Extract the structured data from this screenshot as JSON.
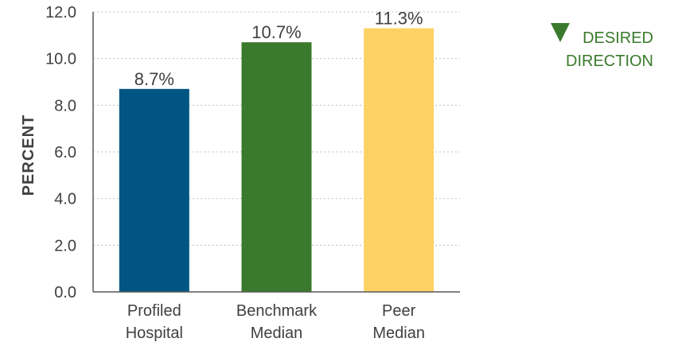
{
  "chart_data": {
    "type": "bar",
    "categories": [
      [
        "Profiled",
        "Hospital"
      ],
      [
        "Benchmark",
        "Median"
      ],
      [
        "Peer",
        "Median"
      ]
    ],
    "values": [
      8.7,
      10.7,
      11.3
    ],
    "value_labels": [
      "8.7%",
      "10.7%",
      "11.3%"
    ],
    "bar_colors": [
      "#005583",
      "#3a7a2c",
      "#fdd166"
    ],
    "xlabel": "",
    "ylabel": "PERCENT",
    "ylim": [
      0,
      12
    ],
    "yticks": [
      "0.0",
      "2.0",
      "4.0",
      "6.0",
      "8.0",
      "10.0",
      "12.0"
    ],
    "grid": true,
    "grid_style": "dotted horizontal",
    "legend": {
      "icon": "down-triangle-icon",
      "lines": [
        "DESIRED",
        "DIRECTION"
      ],
      "color": "#3a7a2c",
      "placement": "top-right"
    }
  }
}
